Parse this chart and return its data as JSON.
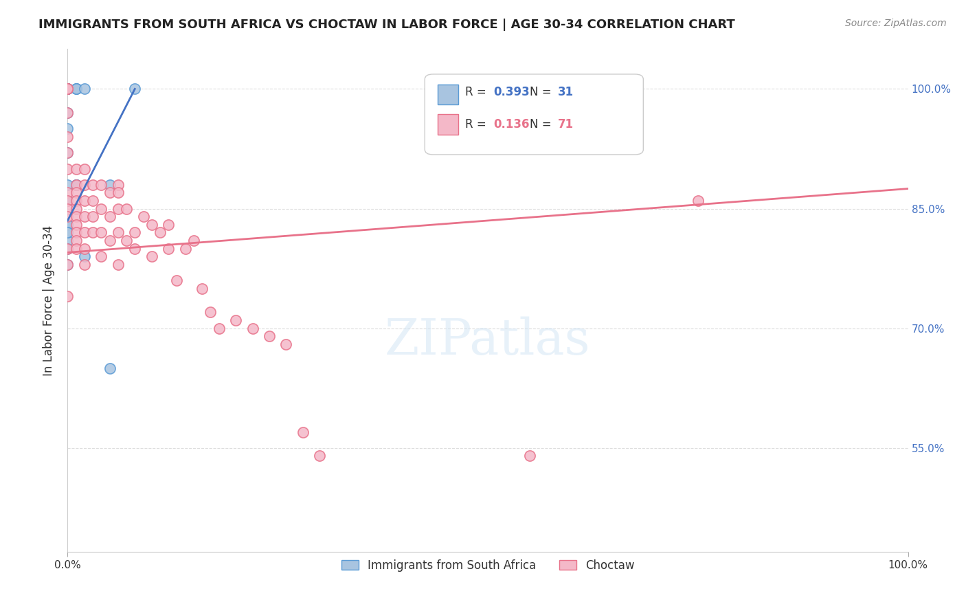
{
  "title": "IMMIGRANTS FROM SOUTH AFRICA VS CHOCTAW IN LABOR FORCE | AGE 30-34 CORRELATION CHART",
  "source": "Source: ZipAtlas.com",
  "xlabel": "",
  "ylabel": "In Labor Force | Age 30-34",
  "xlim": [
    0.0,
    1.0
  ],
  "ylim": [
    0.42,
    1.05
  ],
  "x_tick_labels": [
    "0.0%",
    "100.0%"
  ],
  "y_tick_labels": [
    "55.0%",
    "70.0%",
    "85.0%",
    "100.0%"
  ],
  "y_tick_values": [
    0.55,
    0.7,
    0.85,
    1.0
  ],
  "grid_color": "#dddddd",
  "background_color": "#ffffff",
  "blue_scatter": {
    "x": [
      0.0,
      0.0,
      0.0,
      0.0,
      0.0,
      0.0,
      0.0,
      0.0,
      0.01,
      0.01,
      0.01,
      0.01,
      0.01,
      0.01,
      0.0,
      0.0,
      0.0,
      0.0,
      0.0,
      0.0,
      0.0,
      0.0,
      0.02,
      0.02,
      0.05,
      0.05,
      0.08,
      0.0,
      0.0,
      0.0,
      0.0
    ],
    "y": [
      1.0,
      1.0,
      1.0,
      1.0,
      1.0,
      1.0,
      0.97,
      0.95,
      1.0,
      1.0,
      1.0,
      0.88,
      0.88,
      0.88,
      0.92,
      0.88,
      0.86,
      0.86,
      0.83,
      0.83,
      0.81,
      0.8,
      1.0,
      0.79,
      0.88,
      0.65,
      1.0,
      0.83,
      0.82,
      0.82,
      0.78
    ],
    "color": "#a8c4e0",
    "edge_color": "#5b9bd5",
    "label": "Immigrants from South Africa",
    "R": 0.393,
    "N": 31
  },
  "pink_scatter": {
    "x": [
      0.0,
      0.0,
      0.0,
      0.0,
      0.0,
      0.0,
      0.0,
      0.0,
      0.0,
      0.0,
      0.0,
      0.0,
      0.0,
      0.0,
      0.01,
      0.01,
      0.01,
      0.01,
      0.01,
      0.01,
      0.01,
      0.01,
      0.01,
      0.01,
      0.02,
      0.02,
      0.02,
      0.02,
      0.02,
      0.02,
      0.02,
      0.03,
      0.03,
      0.03,
      0.03,
      0.04,
      0.04,
      0.04,
      0.04,
      0.05,
      0.05,
      0.05,
      0.06,
      0.06,
      0.06,
      0.06,
      0.06,
      0.07,
      0.07,
      0.08,
      0.08,
      0.09,
      0.1,
      0.1,
      0.11,
      0.12,
      0.12,
      0.13,
      0.14,
      0.15,
      0.16,
      0.17,
      0.18,
      0.2,
      0.22,
      0.24,
      0.26,
      0.28,
      0.3,
      0.55,
      0.75
    ],
    "y": [
      1.0,
      1.0,
      1.0,
      0.97,
      0.94,
      0.92,
      0.9,
      0.87,
      0.86,
      0.85,
      0.84,
      0.8,
      0.78,
      0.74,
      0.9,
      0.88,
      0.87,
      0.86,
      0.85,
      0.84,
      0.83,
      0.82,
      0.81,
      0.8,
      0.9,
      0.88,
      0.86,
      0.84,
      0.82,
      0.8,
      0.78,
      0.88,
      0.86,
      0.84,
      0.82,
      0.88,
      0.85,
      0.82,
      0.79,
      0.87,
      0.84,
      0.81,
      0.88,
      0.87,
      0.85,
      0.82,
      0.78,
      0.85,
      0.81,
      0.82,
      0.8,
      0.84,
      0.83,
      0.79,
      0.82,
      0.83,
      0.8,
      0.76,
      0.8,
      0.81,
      0.75,
      0.72,
      0.7,
      0.71,
      0.7,
      0.69,
      0.68,
      0.57,
      0.54,
      0.54,
      0.86
    ],
    "color": "#f4b8c8",
    "edge_color": "#e8728a",
    "label": "Choctaw",
    "R": 0.136,
    "N": 71
  },
  "blue_line": {
    "x": [
      0.0,
      0.08
    ],
    "y": [
      0.835,
      1.0
    ],
    "color": "#4472c4"
  },
  "pink_line": {
    "x": [
      0.0,
      1.0
    ],
    "y": [
      0.795,
      0.875
    ],
    "color": "#e8728a"
  },
  "watermark": "ZIPatlas",
  "legend_box_color": "#ffffff",
  "legend_border_color": "#cccccc"
}
